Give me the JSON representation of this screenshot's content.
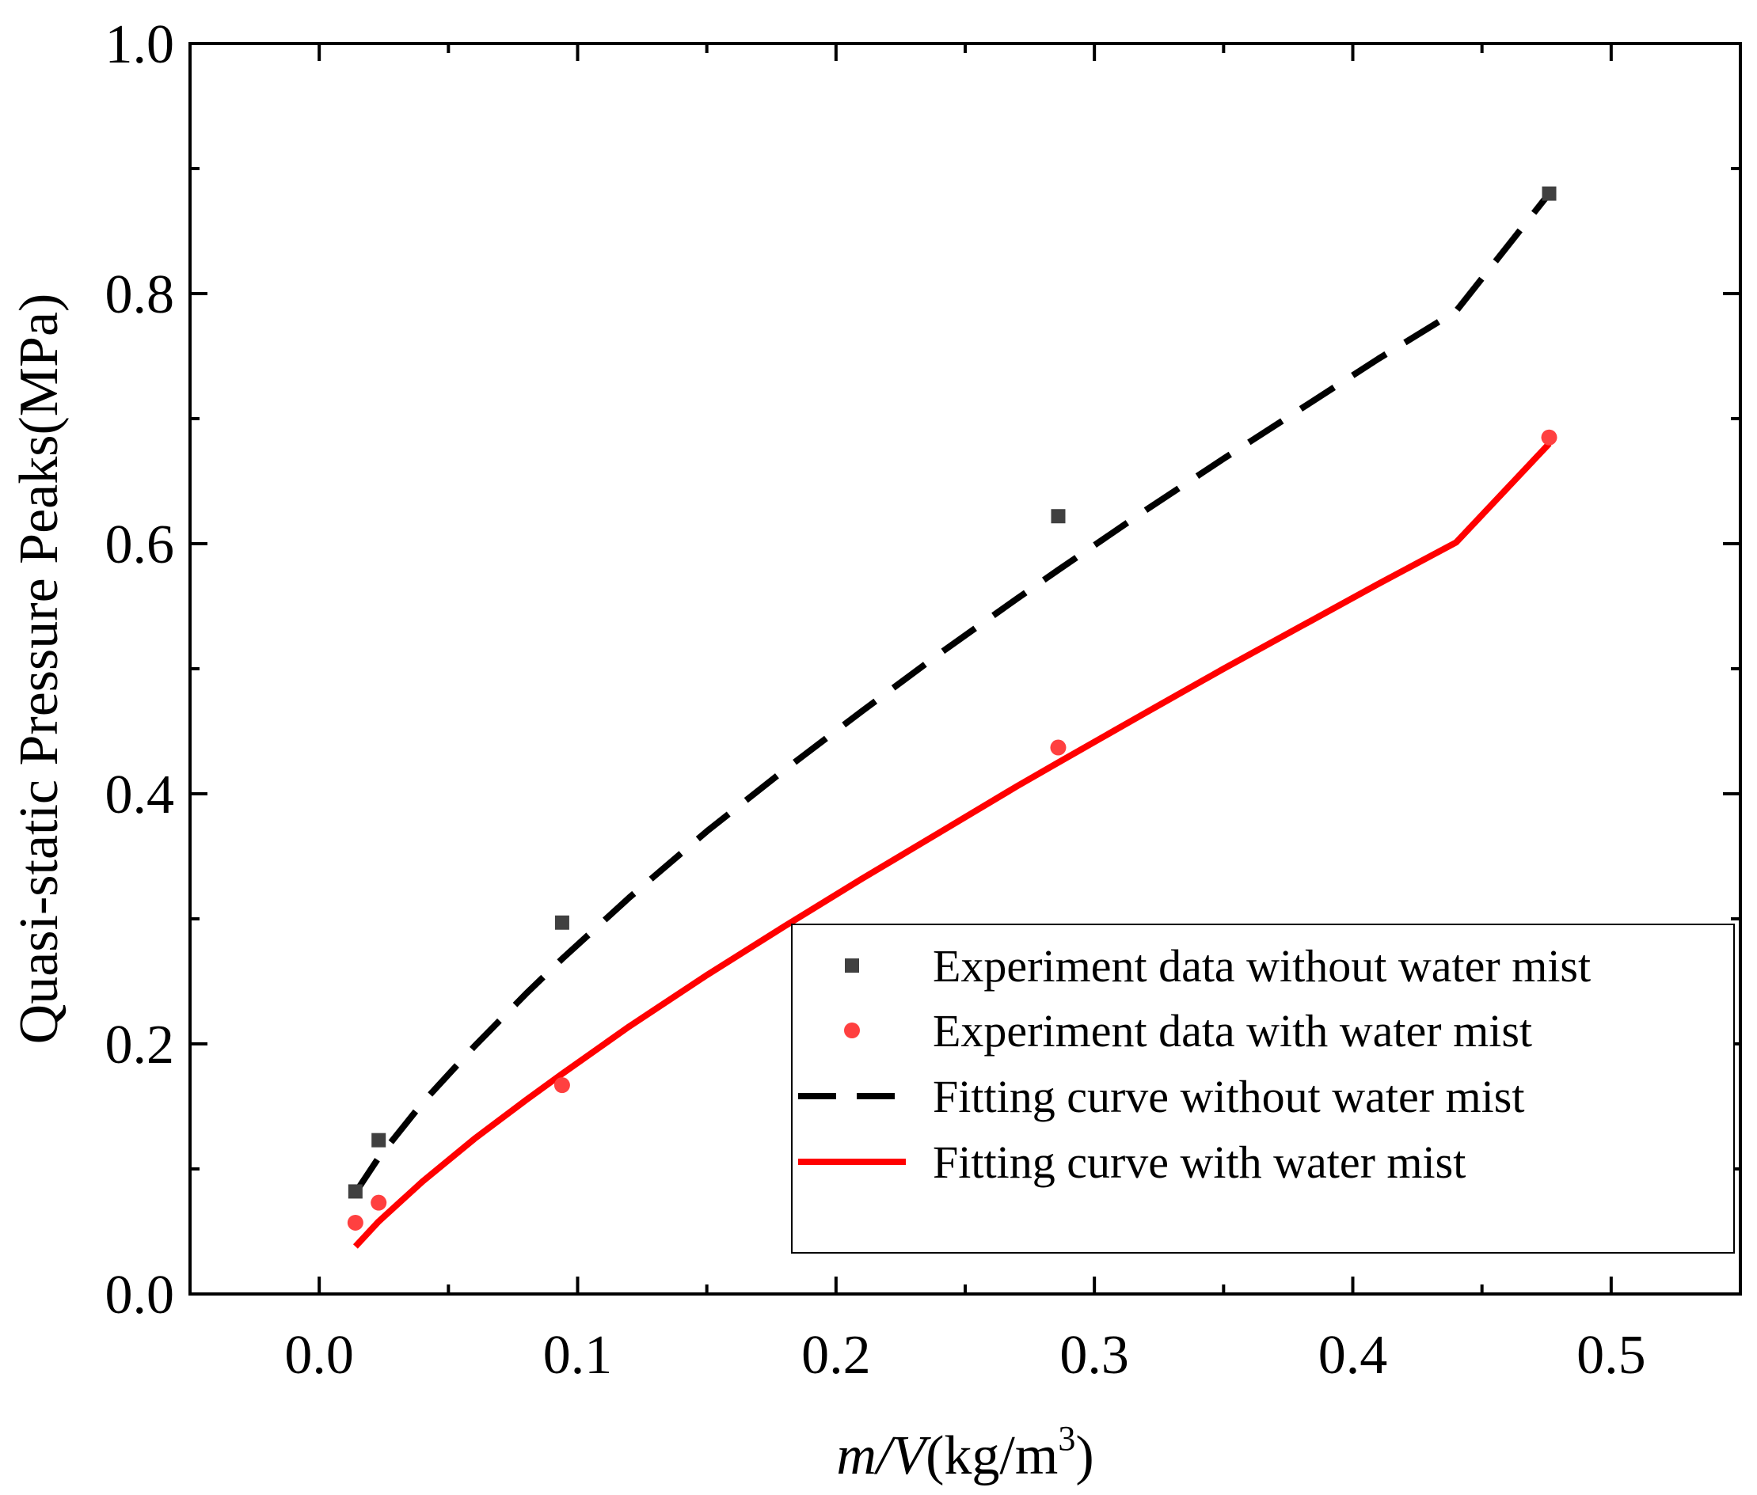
{
  "chart_data": {
    "type": "scatter",
    "title": "",
    "xlabel": {
      "italic": "m/V",
      "unit_prefix": "(kg/m",
      "unit_sup": "3",
      "unit_suffix": ")"
    },
    "ylabel": "Quasi-static Pressure Peaks(MPa)",
    "xlim": [
      -0.05,
      0.55
    ],
    "ylim": [
      0.0,
      1.0
    ],
    "xticks": [
      0.0,
      0.1,
      0.2,
      0.3,
      0.4,
      0.5
    ],
    "yticks": [
      0.0,
      0.2,
      0.4,
      0.6,
      0.8,
      1.0
    ],
    "xtick_labels": [
      "0.0",
      "0.1",
      "0.2",
      "0.3",
      "0.4",
      "0.5"
    ],
    "ytick_labels": [
      "0.0",
      "0.2",
      "0.4",
      "0.6",
      "0.8",
      "1.0"
    ],
    "grid": false,
    "legend_position": "bottom-right",
    "series": [
      {
        "name": "Experiment data without water mist",
        "kind": "scatter",
        "marker": "square",
        "color": "#404040",
        "x": [
          0.014,
          0.023,
          0.094,
          0.286,
          0.476
        ],
        "y": [
          0.082,
          0.123,
          0.297,
          0.622,
          0.88
        ]
      },
      {
        "name": "Experiment data with water mist",
        "kind": "scatter",
        "marker": "circle",
        "color": "#ff4040",
        "x": [
          0.014,
          0.023,
          0.094,
          0.286,
          0.476
        ],
        "y": [
          0.057,
          0.073,
          0.167,
          0.437,
          0.685
        ]
      },
      {
        "name": "Fitting curve without water mist",
        "kind": "line",
        "style": "dashed",
        "color": "#000000",
        "x": [
          0.014,
          0.023,
          0.04,
          0.06,
          0.08,
          0.094,
          0.12,
          0.15,
          0.18,
          0.21,
          0.24,
          0.27,
          0.286,
          0.32,
          0.35,
          0.38,
          0.41,
          0.44,
          0.476
        ],
        "y": [
          0.081,
          0.109,
          0.153,
          0.198,
          0.24,
          0.268,
          0.317,
          0.37,
          0.419,
          0.466,
          0.512,
          0.556,
          0.579,
          0.627,
          0.668,
          0.708,
          0.748,
          0.786,
          0.88
        ]
      },
      {
        "name": "Fitting curve with water mist",
        "kind": "line",
        "style": "solid",
        "color": "#ff0000",
        "x": [
          0.014,
          0.023,
          0.04,
          0.06,
          0.08,
          0.094,
          0.12,
          0.15,
          0.18,
          0.21,
          0.24,
          0.27,
          0.286,
          0.32,
          0.35,
          0.38,
          0.41,
          0.44,
          0.476
        ],
        "y": [
          0.038,
          0.058,
          0.09,
          0.124,
          0.155,
          0.176,
          0.214,
          0.255,
          0.294,
          0.332,
          0.369,
          0.406,
          0.425,
          0.465,
          0.5,
          0.534,
          0.568,
          0.601,
          0.68
        ]
      }
    ]
  }
}
